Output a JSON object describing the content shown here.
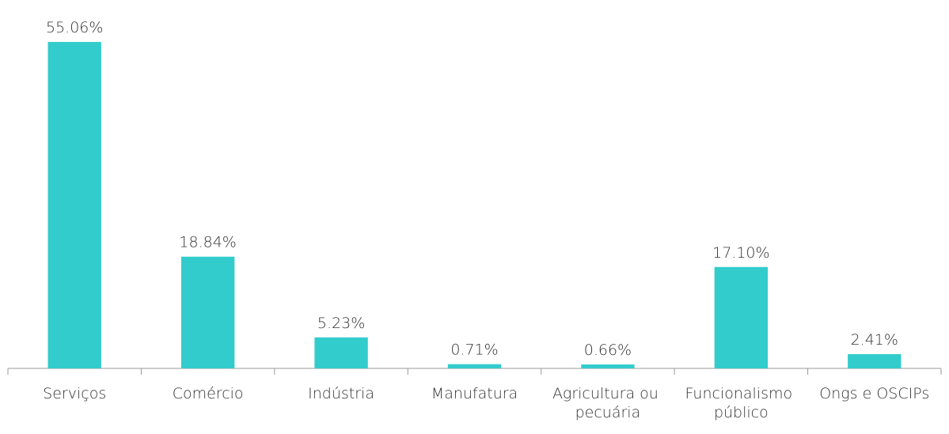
{
  "chart_data": {
    "type": "bar",
    "categories": [
      "Serviços",
      "Comércio",
      "Indústria",
      "Manufatura",
      "Agricultura ou pecuária",
      "Funcionalismo público",
      "Ongs e OSCIPs"
    ],
    "values": [
      55.06,
      18.84,
      5.23,
      0.71,
      0.66,
      17.1,
      2.41
    ],
    "value_labels": [
      "55.06%",
      "18.84%",
      "5.23%",
      "0.71%",
      "0.66%",
      "17.10%",
      "2.41%"
    ],
    "color": "#33cccc",
    "ylim": [
      0,
      60
    ]
  }
}
